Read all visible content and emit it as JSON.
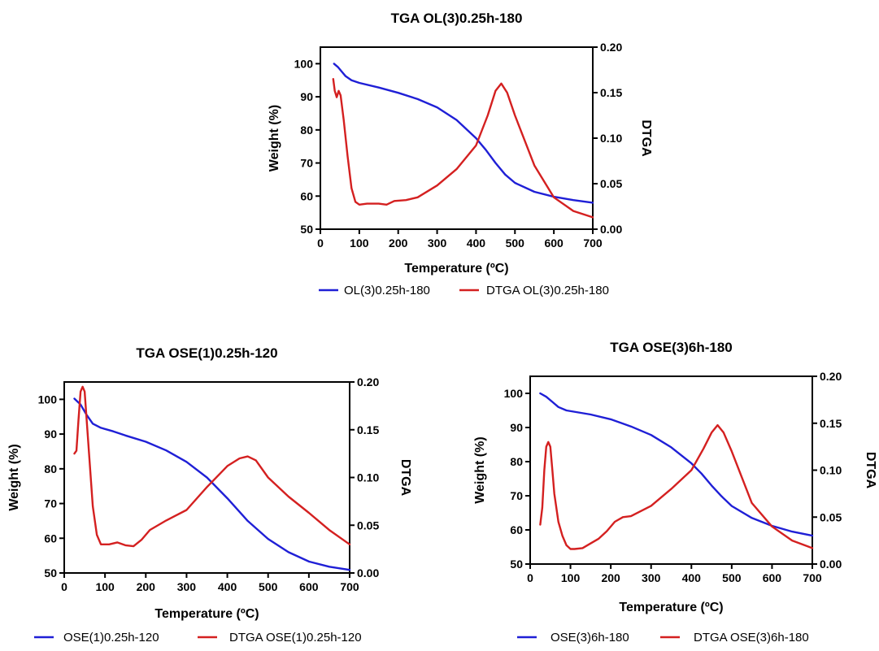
{
  "chart_data": [
    {
      "type": "line",
      "title": "TGA OL(3)0.25h-180",
      "xlabel": "Temperature (ºC)",
      "ylabel": "Weight (%)",
      "y2label": "DTGA",
      "xlim": [
        0,
        700
      ],
      "ylim": [
        50,
        105
      ],
      "y2lim": [
        0,
        0.2
      ],
      "xticks": [
        "0",
        "100",
        "200",
        "300",
        "400",
        "500",
        "600",
        "700"
      ],
      "yticks": [
        "50",
        "60",
        "70",
        "80",
        "90",
        "100"
      ],
      "y2ticks": [
        "0.00",
        "0.05",
        "0.10",
        "0.15",
        "0.20"
      ],
      "legend_position": "bottom",
      "series": [
        {
          "name": "OL(3)0.25h-180",
          "axis": "left",
          "color": "#1f1fd6",
          "x": [
            35,
            45,
            55,
            65,
            80,
            100,
            150,
            200,
            250,
            300,
            350,
            400,
            425,
            450,
            475,
            500,
            550,
            600,
            650,
            700
          ],
          "y": [
            100,
            99,
            97.6,
            96.2,
            95,
            94.2,
            92.8,
            91.2,
            89.3,
            86.8,
            83,
            77.5,
            74,
            70,
            66.5,
            64,
            61.3,
            59.8,
            58.8,
            58
          ]
        },
        {
          "name": "DTGA OL(3)0.25h-180",
          "axis": "right",
          "color": "#d42020",
          "x": [
            33,
            37,
            42,
            47,
            52,
            60,
            70,
            80,
            90,
            100,
            120,
            150,
            170,
            190,
            220,
            250,
            300,
            350,
            400,
            430,
            450,
            465,
            480,
            500,
            550,
            600,
            650,
            700
          ],
          "y": [
            0.165,
            0.152,
            0.145,
            0.152,
            0.147,
            0.12,
            0.08,
            0.045,
            0.03,
            0.027,
            0.028,
            0.028,
            0.027,
            0.031,
            0.032,
            0.035,
            0.048,
            0.066,
            0.092,
            0.125,
            0.152,
            0.16,
            0.15,
            0.125,
            0.07,
            0.035,
            0.02,
            0.013
          ]
        }
      ]
    },
    {
      "type": "line",
      "title": "TGA OSE(1)0.25h-120",
      "xlabel": "Temperature (ºC)",
      "ylabel": "Weight (%)",
      "y2label": "DTGA",
      "xlim": [
        0,
        700
      ],
      "ylim": [
        50,
        105
      ],
      "y2lim": [
        0,
        0.2
      ],
      "xticks": [
        "0",
        "100",
        "200",
        "300",
        "400",
        "500",
        "600",
        "700"
      ],
      "yticks": [
        "50",
        "60",
        "70",
        "80",
        "90",
        "100"
      ],
      "y2ticks": [
        "0.00",
        "0.05",
        "0.10",
        "0.15",
        "0.20"
      ],
      "legend_position": "bottom",
      "series": [
        {
          "name": "OSE(1)0.25h-120",
          "axis": "left",
          "color": "#1f1fd6",
          "x": [
            25,
            40,
            55,
            70,
            90,
            120,
            150,
            200,
            250,
            300,
            350,
            400,
            450,
            500,
            550,
            600,
            650,
            700
          ],
          "y": [
            100.2,
            98.5,
            95.5,
            93,
            91.8,
            90.8,
            89.6,
            87.8,
            85.3,
            82,
            77.5,
            71.5,
            65,
            59.8,
            56,
            53.3,
            51.8,
            50.9
          ]
        },
        {
          "name": "DTGA OSE(1)0.25h-120",
          "axis": "right",
          "color": "#d42020",
          "x": [
            25,
            30,
            35,
            40,
            45,
            50,
            55,
            60,
            70,
            80,
            90,
            100,
            110,
            130,
            150,
            170,
            190,
            210,
            250,
            300,
            350,
            400,
            430,
            450,
            470,
            500,
            550,
            600,
            650,
            700
          ],
          "y": [
            0.125,
            0.128,
            0.16,
            0.19,
            0.195,
            0.19,
            0.16,
            0.13,
            0.07,
            0.04,
            0.03,
            0.03,
            0.03,
            0.032,
            0.029,
            0.028,
            0.035,
            0.045,
            0.055,
            0.066,
            0.09,
            0.112,
            0.12,
            0.122,
            0.118,
            0.1,
            0.08,
            0.063,
            0.045,
            0.03
          ]
        }
      ]
    },
    {
      "type": "line",
      "title": "TGA OSE(3)6h-180",
      "xlabel": "Temperature (ºC)",
      "ylabel": "Weight (%)",
      "y2label": "DTGA",
      "xlim": [
        0,
        700
      ],
      "ylim": [
        50,
        105
      ],
      "y2lim": [
        0,
        0.2
      ],
      "xticks": [
        "0",
        "100",
        "200",
        "300",
        "400",
        "500",
        "600",
        "700"
      ],
      "yticks": [
        "50",
        "60",
        "70",
        "80",
        "90",
        "100"
      ],
      "y2ticks": [
        "0.00",
        "0.05",
        "0.10",
        "0.15",
        "0.20"
      ],
      "legend_position": "bottom",
      "series": [
        {
          "name": "OSE(3)6h-180",
          "axis": "left",
          "color": "#1f1fd6",
          "x": [
            25,
            40,
            55,
            70,
            90,
            120,
            150,
            200,
            250,
            300,
            350,
            400,
            425,
            450,
            475,
            500,
            550,
            600,
            650,
            700
          ],
          "y": [
            100,
            99,
            97.5,
            96,
            95,
            94.4,
            93.8,
            92.4,
            90.3,
            87.8,
            84.2,
            79.5,
            76.5,
            73,
            69.8,
            67,
            63.5,
            61.2,
            59.5,
            58.3
          ]
        },
        {
          "name": "DTGA OSE(3)6h-180",
          "axis": "right",
          "color": "#d42020",
          "x": [
            25,
            30,
            35,
            40,
            45,
            50,
            55,
            60,
            70,
            80,
            90,
            100,
            110,
            130,
            150,
            170,
            190,
            210,
            230,
            250,
            300,
            350,
            400,
            430,
            450,
            465,
            480,
            500,
            550,
            600,
            650,
            700
          ],
          "y": [
            0.042,
            0.06,
            0.1,
            0.125,
            0.13,
            0.125,
            0.1,
            0.075,
            0.045,
            0.03,
            0.02,
            0.016,
            0.016,
            0.017,
            0.022,
            0.027,
            0.035,
            0.045,
            0.05,
            0.051,
            0.062,
            0.08,
            0.1,
            0.123,
            0.14,
            0.148,
            0.14,
            0.12,
            0.065,
            0.04,
            0.025,
            0.017
          ]
        }
      ]
    }
  ]
}
